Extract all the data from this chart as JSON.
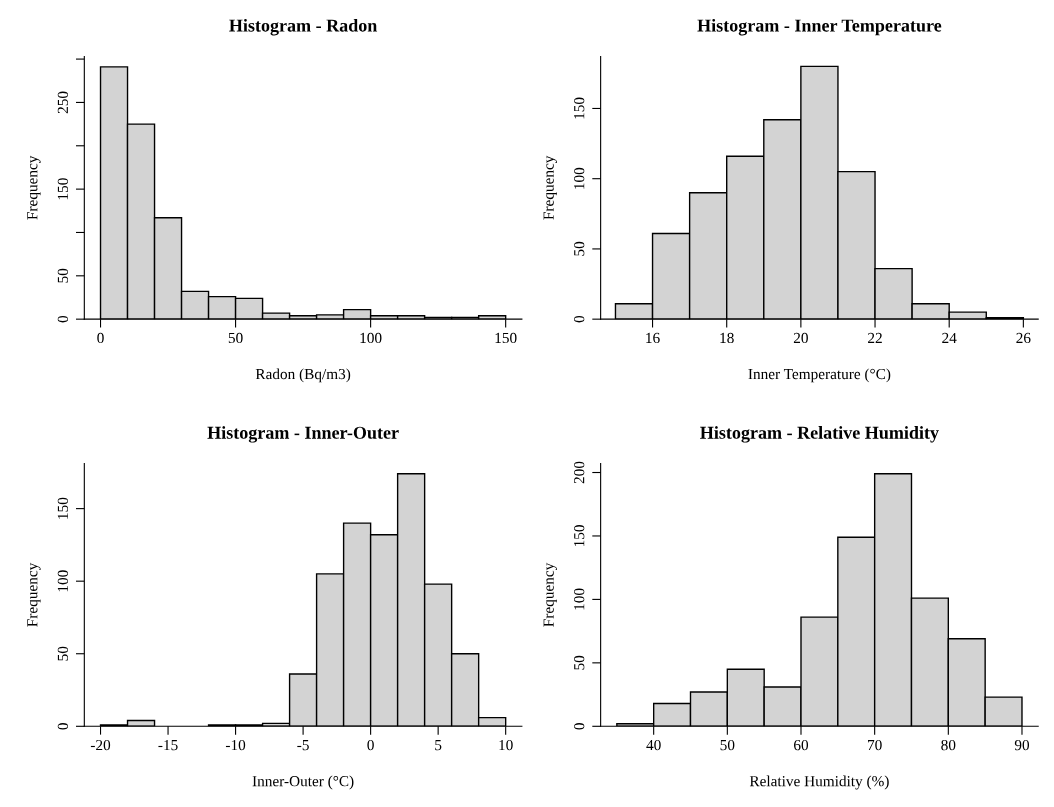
{
  "chart_data": [
    {
      "type": "histogram",
      "title": "Histogram - Radon",
      "xlabel": "Radon (Bq/m3)",
      "ylabel": "Frequency",
      "color": "#d3d3d3",
      "bins": [
        0,
        10,
        20,
        30,
        40,
        50,
        60,
        70,
        80,
        90,
        100,
        110,
        120,
        130,
        140,
        150
      ],
      "values": [
        291,
        225,
        117,
        32,
        26,
        24,
        7,
        4,
        5,
        11,
        4,
        4,
        2,
        2,
        4
      ],
      "xlim": [
        -6,
        156
      ],
      "ylim": [
        0,
        303
      ],
      "xticks": [
        0,
        50,
        100,
        150
      ],
      "yticks": [
        0,
        50,
        {
          "value": 100,
          "label": null
        },
        150,
        {
          "value": 200,
          "label": null
        },
        250,
        {
          "value": 300,
          "label": null
        }
      ],
      "grid": false
    },
    {
      "type": "histogram",
      "title": "Histogram - Inner Temperature",
      "xlabel": "Inner Temperature (°C)",
      "ylabel": "Frequency",
      "color": "#d3d3d3",
      "bins": [
        15,
        16,
        17,
        18,
        19,
        20,
        21,
        22,
        23,
        24,
        25,
        26
      ],
      "values": [
        11,
        61,
        90,
        116,
        142,
        180,
        105,
        36,
        11,
        5,
        1
      ],
      "xlim": [
        14.6,
        26.4
      ],
      "ylim": [
        0,
        187
      ],
      "xticks": [
        16,
        18,
        20,
        22,
        24,
        26
      ],
      "yticks": [
        0,
        50,
        100,
        150
      ],
      "grid": false
    },
    {
      "type": "histogram",
      "title": "Histogram - Inner-Outer",
      "xlabel": "Inner-Outer (°C)",
      "ylabel": "Frequency",
      "color": "#d3d3d3",
      "bins": [
        -20,
        -18,
        -16,
        -14,
        -12,
        -10,
        -8,
        -6,
        -4,
        -2,
        0,
        2,
        4,
        6,
        8,
        10
      ],
      "values": [
        1,
        4,
        0,
        0,
        1,
        1,
        2,
        36,
        105,
        140,
        132,
        174,
        98,
        50,
        6
      ],
      "xlim": [
        -21.2,
        11.2
      ],
      "ylim": [
        0,
        181
      ],
      "xticks": [
        -20,
        -15,
        -10,
        -5,
        0,
        5,
        10
      ],
      "yticks": [
        0,
        50,
        100,
        150
      ],
      "grid": false
    },
    {
      "type": "histogram",
      "title": "Histogram - Relative Humidity",
      "xlabel": "Relative Humidity (%)",
      "ylabel": "Frequency",
      "color": "#d3d3d3",
      "bins": [
        35,
        40,
        45,
        50,
        55,
        60,
        65,
        70,
        75,
        80,
        85,
        90
      ],
      "values": [
        2,
        18,
        27,
        45,
        31,
        86,
        149,
        199,
        101,
        69,
        23
      ],
      "xlim": [
        32.8,
        92.2
      ],
      "ylim": [
        0,
        207
      ],
      "xticks": [
        40,
        50,
        60,
        70,
        80,
        90
      ],
      "yticks": [
        0,
        50,
        100,
        150,
        200
      ],
      "grid": false
    }
  ]
}
